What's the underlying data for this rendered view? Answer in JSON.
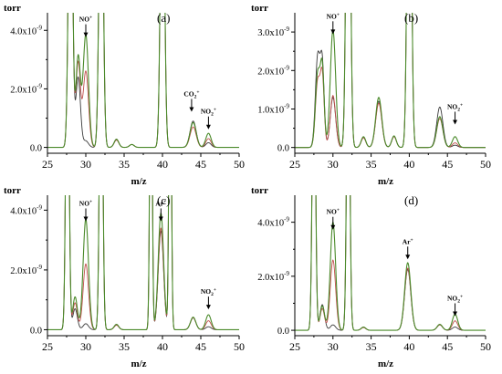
{
  "chart_data": [
    {
      "type": "line",
      "panel_label": "(a)",
      "unit_label": "torr",
      "xlabel": "m/z",
      "xlim": [
        25,
        50
      ],
      "xticks": [
        "25",
        "30",
        "35",
        "40",
        "45",
        "50"
      ],
      "ylim": [
        -2e-10,
        4.6e-09
      ],
      "yticks": [
        {
          "value": 0,
          "label": "0.0"
        },
        {
          "value": 2e-09,
          "label": "2.0x10",
          "exp": "-9"
        },
        {
          "value": 4e-09,
          "label": "4.0x10",
          "exp": "-9"
        }
      ],
      "annotations": [
        {
          "text": "NO",
          "sup": "+",
          "x": 30.0,
          "y": 4.3e-09
        },
        {
          "text": "CO",
          "sub": "2",
          "sup": "+",
          "x": 43.8,
          "y": 1.75e-09
        },
        {
          "text": "NO",
          "sub": "2",
          "sup": "+",
          "x": 46.0,
          "y": 1.15e-09
        }
      ],
      "peaks": [
        {
          "x": 28.0,
          "w": 0.25,
          "heights": [
            1.2e-08,
            1.2e-08,
            1.2e-08
          ]
        },
        {
          "x": 29.0,
          "w": 0.3,
          "heights": [
            2.9e-09,
            3.1e-09,
            2.4e-09
          ]
        },
        {
          "x": 30.0,
          "w": 0.35,
          "heights": [
            2.6e-09,
            3.85e-09,
            2.2e-10
          ]
        },
        {
          "x": 32.0,
          "w": 0.25,
          "heights": [
            1.2e-08,
            1.2e-08,
            1.2e-08
          ]
        },
        {
          "x": 34.0,
          "w": 0.3,
          "heights": [
            2.5e-10,
            2.8e-10,
            2.7e-10
          ]
        },
        {
          "x": 36.0,
          "w": 0.3,
          "heights": [
            1e-10,
            1e-10,
            1e-10
          ]
        },
        {
          "x": 40.0,
          "w": 0.25,
          "heights": [
            1.2e-08,
            1.2e-08,
            1.2e-08
          ]
        },
        {
          "x": 44.0,
          "w": 0.4,
          "heights": [
            7e-10,
            8.5e-10,
            9e-10
          ]
        },
        {
          "x": 46.0,
          "w": 0.35,
          "heights": [
            3e-10,
            4.8e-10,
            1.6e-10
          ]
        }
      ],
      "series_colors": [
        "#c0504d",
        "#4a8a2a",
        "#3a3a3a"
      ]
    },
    {
      "type": "line",
      "panel_label": "(b)",
      "unit_label": "torr",
      "xlabel": "m/z",
      "xlim": [
        25,
        50
      ],
      "xticks": [
        "25",
        "30",
        "35",
        "40",
        "45",
        "50"
      ],
      "ylim": [
        -1.5e-10,
        3.5e-09
      ],
      "yticks": [
        {
          "value": 0,
          "label": "0.0"
        },
        {
          "value": 1e-09,
          "label": "1.0x10",
          "exp": "-9"
        },
        {
          "value": 2e-09,
          "label": "2.0x10",
          "exp": "-9"
        },
        {
          "value": 3e-09,
          "label": "3.0x10",
          "exp": "-9"
        }
      ],
      "annotations": [
        {
          "text": "NO",
          "sup": "+",
          "x": 30.0,
          "y": 3.35e-09
        },
        {
          "text": "NO",
          "sub": "2",
          "sup": "+",
          "x": 46.0,
          "y": 1e-09
        }
      ],
      "peaks": [
        {
          "x": 28.0,
          "w": 0.3,
          "heights": [
            1.7e-09,
            1.9e-09,
            2.35e-09
          ]
        },
        {
          "x": 28.6,
          "w": 0.25,
          "heights": [
            1.8e-09,
            2e-09,
            2.1e-09
          ]
        },
        {
          "x": 30.0,
          "w": 0.35,
          "heights": [
            1.35e-09,
            3.05e-09,
            1.3e-09
          ]
        },
        {
          "x": 32.0,
          "w": 0.25,
          "heights": [
            1.2e-08,
            1.2e-08,
            1.2e-08
          ]
        },
        {
          "x": 34.0,
          "w": 0.3,
          "heights": [
            2.5e-10,
            2.8e-10,
            2.7e-10
          ]
        },
        {
          "x": 36.0,
          "w": 0.4,
          "heights": [
            1.15e-09,
            1.3e-09,
            1.2e-09
          ]
        },
        {
          "x": 38.0,
          "w": 0.3,
          "heights": [
            2.8e-10,
            3e-10,
            2.9e-10
          ]
        },
        {
          "x": 40.0,
          "w": 0.25,
          "heights": [
            1.2e-08,
            1.2e-08,
            1.2e-08
          ]
        },
        {
          "x": 44.0,
          "w": 0.4,
          "heights": [
            7.5e-10,
            8e-10,
            1.05e-09
          ]
        },
        {
          "x": 46.0,
          "w": 0.35,
          "heights": [
            1.2e-10,
            2.8e-10,
            6e-11
          ]
        }
      ],
      "series_colors": [
        "#c0504d",
        "#4a8a2a",
        "#3a3a3a"
      ]
    },
    {
      "type": "line",
      "panel_label": "(c)",
      "unit_label": "torr",
      "xlabel": "m/z",
      "xlim": [
        25,
        50
      ],
      "xticks": [
        "25",
        "30",
        "35",
        "40",
        "45",
        "50"
      ],
      "ylim": [
        -2e-10,
        4.5e-09
      ],
      "yticks": [
        {
          "value": 0,
          "label": "0.0"
        },
        {
          "value": 2e-09,
          "label": "2.0x10",
          "exp": "-9"
        },
        {
          "value": 4e-09,
          "label": "4.0x10",
          "exp": "-9"
        }
      ],
      "annotations": [
        {
          "text": "NO",
          "sup": "+",
          "x": 30.0,
          "y": 4.15e-09
        },
        {
          "text": "Ar",
          "sup": "+",
          "x": 39.8,
          "y": 4.15e-09
        },
        {
          "text": "NO",
          "sub": "2",
          "sup": "+",
          "x": 46.0,
          "y": 1.2e-09
        }
      ],
      "peaks": [
        {
          "x": 27.6,
          "w": 0.2,
          "heights": [
            1.2e-08,
            1.2e-08,
            1.2e-08
          ]
        },
        {
          "x": 28.6,
          "w": 0.3,
          "heights": [
            9e-10,
            1.1e-09,
            7e-10
          ]
        },
        {
          "x": 30.0,
          "w": 0.35,
          "heights": [
            2.2e-09,
            3.7e-09,
            2e-10
          ]
        },
        {
          "x": 32.0,
          "w": 0.2,
          "heights": [
            1.2e-08,
            1.2e-08,
            1.2e-08
          ]
        },
        {
          "x": 34.0,
          "w": 0.3,
          "heights": [
            1.5e-10,
            1.8e-10,
            1.6e-10
          ]
        },
        {
          "x": 38.5,
          "w": 0.15,
          "heights": [
            1.2e-08,
            1.2e-08,
            1.2e-08
          ]
        },
        {
          "x": 39.8,
          "w": 0.35,
          "heights": [
            3.4e-09,
            3.9e-09,
            3.3e-09
          ]
        },
        {
          "x": 41.0,
          "w": 0.15,
          "heights": [
            1.2e-08,
            1.2e-08,
            1.2e-08
          ]
        },
        {
          "x": 44.0,
          "w": 0.35,
          "heights": [
            4e-10,
            4.2e-10,
            4e-10
          ]
        },
        {
          "x": 46.0,
          "w": 0.35,
          "heights": [
            3e-10,
            5e-10,
            1e-10
          ]
        }
      ],
      "series_colors": [
        "#c0504d",
        "#4a8a2a",
        "#3a3a3a"
      ]
    },
    {
      "type": "line",
      "panel_label": "(d)",
      "unit_label": "torr",
      "xlabel": "m/z",
      "xlim": [
        25,
        50
      ],
      "xticks": [
        "25",
        "30",
        "35",
        "40",
        "45",
        "50"
      ],
      "ylim": [
        -2e-10,
        5e-09
      ],
      "yticks": [
        {
          "value": 0,
          "label": "0.0"
        },
        {
          "value": 2e-09,
          "label": "2.0x10",
          "exp": "-9"
        },
        {
          "value": 4e-09,
          "label": "4.0x10",
          "exp": "-9"
        }
      ],
      "annotations": [
        {
          "text": "NO",
          "sup": "+",
          "x": 30.0,
          "y": 4.3e-09
        },
        {
          "text": "Ar",
          "sup": "+",
          "x": 39.8,
          "y": 3.2e-09
        },
        {
          "text": "NO",
          "sub": "2",
          "sup": "+",
          "x": 46.0,
          "y": 1.1e-09
        }
      ],
      "peaks": [
        {
          "x": 27.5,
          "w": 0.2,
          "heights": [
            1.2e-08,
            1.2e-08,
            1.2e-08
          ]
        },
        {
          "x": 28.6,
          "w": 0.3,
          "heights": [
            8e-10,
            9e-10,
            9.5e-10
          ]
        },
        {
          "x": 30.0,
          "w": 0.35,
          "heights": [
            2.6e-09,
            4e-09,
            2e-10
          ]
        },
        {
          "x": 32.0,
          "w": 0.2,
          "heights": [
            1.2e-08,
            1.2e-08,
            1.2e-08
          ]
        },
        {
          "x": 34.0,
          "w": 0.3,
          "heights": [
            1e-10,
            1.2e-10,
            1.1e-10
          ]
        },
        {
          "x": 39.8,
          "w": 0.4,
          "heights": [
            2.3e-09,
            2.5e-09,
            2.25e-09
          ]
        },
        {
          "x": 44.0,
          "w": 0.35,
          "heights": [
            2e-10,
            2.2e-10,
            2e-10
          ]
        },
        {
          "x": 46.0,
          "w": 0.35,
          "heights": [
            3.5e-10,
            6e-10,
            1.2e-10
          ]
        }
      ],
      "series_colors": [
        "#c0504d",
        "#4a8a2a",
        "#3a3a3a"
      ]
    }
  ]
}
